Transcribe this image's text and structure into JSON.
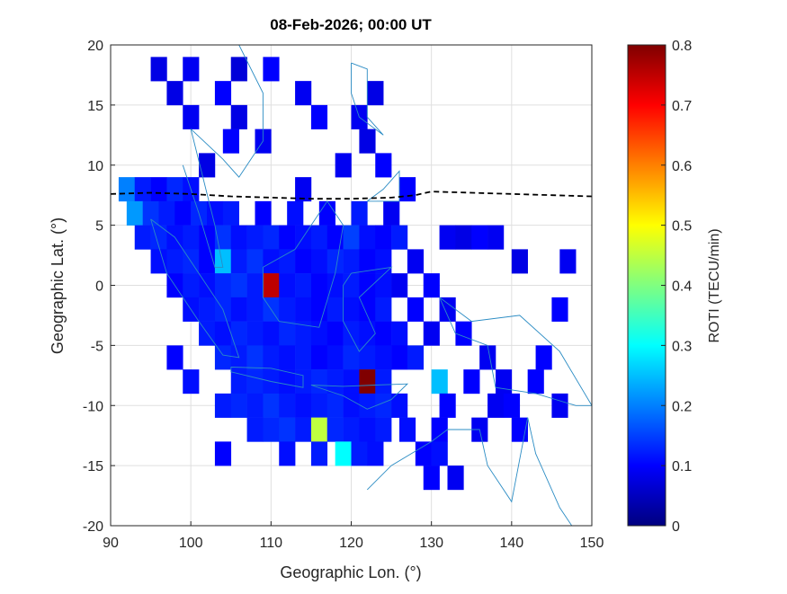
{
  "chart_data": {
    "type": "heatmap",
    "title": "08-Feb-2026; 00:00 UT",
    "x_label": "Geographic Lon. (°)",
    "y_label": "Geographic Lat. (°)",
    "colorbar_label": "ROTI (TECU/min)",
    "colormap": "jet",
    "clim": [
      0,
      0.8
    ],
    "cticks": [
      0,
      0.1,
      0.2,
      0.3,
      0.4,
      0.5,
      0.6,
      0.7,
      0.8
    ],
    "xlim": [
      90,
      150
    ],
    "xticks": [
      90,
      100,
      110,
      120,
      130,
      140,
      150
    ],
    "ylim": [
      -20,
      20
    ],
    "yticks": [
      -20,
      -15,
      -10,
      -5,
      0,
      5,
      10,
      15,
      20
    ],
    "grid": true,
    "x": [
      96,
      100,
      106,
      110,
      98,
      104,
      114,
      123,
      100,
      106,
      116,
      121,
      105,
      109,
      122,
      102,
      119,
      124,
      92,
      94,
      96,
      98,
      100,
      114,
      127,
      93,
      95,
      97,
      99,
      101,
      103,
      105,
      109,
      113,
      117,
      121,
      125,
      94,
      96,
      98,
      100,
      102,
      104,
      106,
      108,
      110,
      112,
      114,
      116,
      118,
      120,
      122,
      124,
      126,
      132,
      134,
      136,
      138,
      96,
      98,
      100,
      102,
      104,
      106,
      108,
      110,
      112,
      114,
      116,
      118,
      120,
      122,
      124,
      128,
      141,
      147,
      98,
      100,
      102,
      104,
      106,
      108,
      110,
      112,
      114,
      116,
      118,
      120,
      122,
      124,
      126,
      130,
      100,
      102,
      104,
      106,
      108,
      110,
      112,
      114,
      116,
      118,
      120,
      122,
      124,
      128,
      132,
      146,
      102,
      104,
      106,
      108,
      110,
      112,
      114,
      116,
      118,
      120,
      122,
      124,
      126,
      130,
      134,
      98,
      104,
      106,
      108,
      110,
      112,
      114,
      116,
      118,
      120,
      122,
      124,
      126,
      128,
      137,
      144,
      100,
      106,
      108,
      110,
      112,
      114,
      116,
      118,
      120,
      122,
      124,
      131,
      135,
      139,
      143,
      104,
      106,
      108,
      110,
      112,
      114,
      116,
      118,
      120,
      122,
      124,
      126,
      132,
      138,
      140,
      146,
      108,
      110,
      112,
      114,
      116,
      118,
      120,
      122,
      124,
      127,
      131,
      136,
      141,
      104,
      112,
      116,
      119,
      121,
      123,
      129,
      131,
      130,
      133
    ],
    "y": [
      18,
      18,
      18,
      18,
      16,
      16,
      16,
      16,
      14,
      14,
      14,
      14,
      12,
      12,
      12,
      10,
      10,
      10,
      8,
      8,
      8,
      8,
      8,
      8,
      8,
      6,
      6,
      6,
      6,
      6,
      6,
      6,
      6,
      6,
      6,
      6,
      6,
      4,
      4,
      4,
      4,
      4,
      4,
      4,
      4,
      4,
      4,
      4,
      4,
      4,
      4,
      4,
      4,
      4,
      4,
      4,
      4,
      4,
      2,
      2,
      2,
      2,
      2,
      2,
      2,
      2,
      2,
      2,
      2,
      2,
      2,
      2,
      2,
      2,
      2,
      2,
      0,
      0,
      0,
      0,
      0,
      0,
      0,
      0,
      0,
      0,
      0,
      0,
      0,
      0,
      0,
      0,
      -2,
      -2,
      -2,
      -2,
      -2,
      -2,
      -2,
      -2,
      -2,
      -2,
      -2,
      -2,
      -2,
      -2,
      -2,
      -2,
      -4,
      -4,
      -4,
      -4,
      -4,
      -4,
      -4,
      -4,
      -4,
      -4,
      -4,
      -4,
      -4,
      -4,
      -4,
      -6,
      -6,
      -6,
      -6,
      -6,
      -6,
      -6,
      -6,
      -6,
      -6,
      -6,
      -6,
      -6,
      -6,
      -6,
      -6,
      -8,
      -8,
      -8,
      -8,
      -8,
      -8,
      -8,
      -8,
      -8,
      -8,
      -8,
      -8,
      -8,
      -8,
      -8,
      -10,
      -10,
      -10,
      -10,
      -10,
      -10,
      -10,
      -10,
      -10,
      -10,
      -10,
      -10,
      -10,
      -10,
      -10,
      -10,
      -12,
      -12,
      -12,
      -12,
      -12,
      -12,
      -12,
      -12,
      -12,
      -12,
      -12,
      -12,
      -12,
      -14,
      -14,
      -14,
      -14,
      -14,
      -14,
      -14,
      -14,
      -16,
      -16
    ],
    "values": [
      0.08,
      0.09,
      0.07,
      0.1,
      0.08,
      0.1,
      0.09,
      0.08,
      0.09,
      0.08,
      0.1,
      0.09,
      0.1,
      0.09,
      0.08,
      0.08,
      0.09,
      0.1,
      0.2,
      0.12,
      0.1,
      0.13,
      0.11,
      0.09,
      0.1,
      0.22,
      0.14,
      0.12,
      0.1,
      0.13,
      0.11,
      0.12,
      0.1,
      0.11,
      0.1,
      0.12,
      0.09,
      0.12,
      0.13,
      0.11,
      0.12,
      0.1,
      0.14,
      0.11,
      0.12,
      0.13,
      0.1,
      0.11,
      0.12,
      0.1,
      0.15,
      0.11,
      0.1,
      0.12,
      0.09,
      0.08,
      0.1,
      0.09,
      0.11,
      0.12,
      0.13,
      0.1,
      0.25,
      0.12,
      0.14,
      0.11,
      0.12,
      0.1,
      0.11,
      0.13,
      0.12,
      0.1,
      0.11,
      0.09,
      0.08,
      0.09,
      0.1,
      0.12,
      0.11,
      0.13,
      0.14,
      0.12,
      0.75,
      0.11,
      0.12,
      0.1,
      0.11,
      0.12,
      0.1,
      0.11,
      0.09,
      0.1,
      0.11,
      0.12,
      0.13,
      0.11,
      0.12,
      0.14,
      0.12,
      0.11,
      0.1,
      0.12,
      0.11,
      0.1,
      0.12,
      0.1,
      0.09,
      0.1,
      0.12,
      0.11,
      0.13,
      0.12,
      0.11,
      0.13,
      0.12,
      0.11,
      0.1,
      0.12,
      0.11,
      0.1,
      0.11,
      0.09,
      0.1,
      0.1,
      0.13,
      0.12,
      0.14,
      0.12,
      0.11,
      0.12,
      0.1,
      0.11,
      0.13,
      0.12,
      0.11,
      0.1,
      0.12,
      0.09,
      0.1,
      0.11,
      0.12,
      0.13,
      0.12,
      0.11,
      0.12,
      0.13,
      0.12,
      0.11,
      0.8,
      0.12,
      0.25,
      0.1,
      0.09,
      0.1,
      0.12,
      0.13,
      0.12,
      0.14,
      0.12,
      0.11,
      0.12,
      0.13,
      0.11,
      0.12,
      0.13,
      0.11,
      0.1,
      0.09,
      0.1,
      0.09,
      0.12,
      0.13,
      0.14,
      0.12,
      0.45,
      0.13,
      0.12,
      0.11,
      0.12,
      0.11,
      0.1,
      0.09,
      0.1,
      0.1,
      0.11,
      0.12,
      0.3,
      0.12,
      0.11,
      0.1,
      0.11,
      0.1,
      0.09
    ],
    "magnetic_equator": {
      "x": [
        90,
        95,
        100,
        105,
        110,
        115,
        120,
        125,
        128,
        130,
        135,
        140,
        145,
        150
      ],
      "y": [
        7.6,
        7.7,
        7.6,
        7.4,
        7.3,
        7.2,
        7.2,
        7.3,
        7.5,
        7.8,
        7.7,
        7.6,
        7.5,
        7.4
      ]
    }
  }
}
